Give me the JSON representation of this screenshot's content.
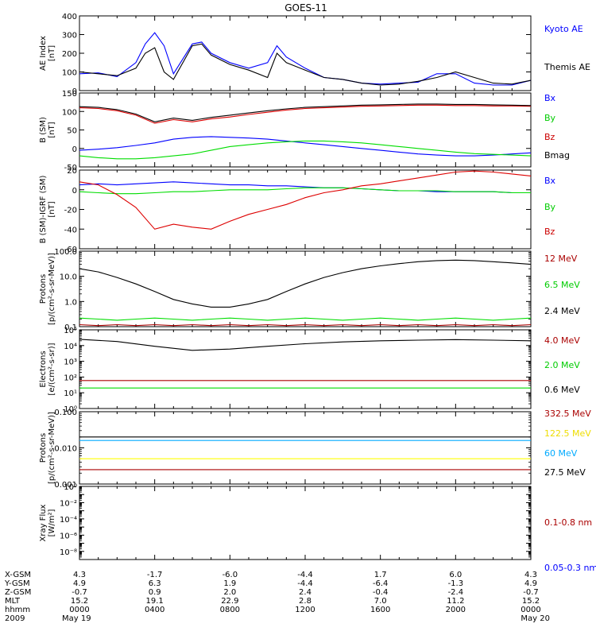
{
  "title": "GOES-11",
  "chart_data": [
    {
      "panel": "ae",
      "type": "line",
      "ylabel": [
        "AE Index",
        "[nT]"
      ],
      "ylim": [
        0,
        400
      ],
      "yscale": "linear",
      "yticks": [
        0,
        100,
        200,
        300,
        400
      ],
      "ytick_labels": [
        "0",
        "100",
        "200",
        "300",
        "400"
      ],
      "x_hours": [
        0,
        1,
        2,
        3,
        3.5,
        4,
        4.5,
        5,
        6,
        6.5,
        7,
        8,
        9,
        10,
        10.5,
        11,
        12,
        13,
        14,
        15,
        16,
        17,
        18,
        19,
        20,
        21,
        22,
        23,
        24
      ],
      "series": [
        {
          "name": "Kyoto AE",
          "color": "#0000ff",
          "values": [
            90,
            95,
            75,
            150,
            250,
            310,
            240,
            90,
            250,
            260,
            200,
            150,
            120,
            150,
            240,
            180,
            120,
            70,
            60,
            40,
            35,
            40,
            45,
            90,
            90,
            40,
            30,
            30,
            55
          ]
        },
        {
          "name": "Themis AE",
          "color": "#000000",
          "values": [
            100,
            90,
            80,
            120,
            200,
            230,
            100,
            60,
            240,
            250,
            190,
            140,
            110,
            70,
            200,
            150,
            110,
            70,
            60,
            40,
            30,
            35,
            50,
            70,
            100,
            70,
            40,
            35,
            55
          ]
        }
      ]
    },
    {
      "panel": "bfield",
      "type": "line",
      "ylabel": [
        "B (SM)",
        "[nT]"
      ],
      "ylim": [
        -50,
        150
      ],
      "yscale": "linear",
      "yticks": [
        -50,
        0,
        50,
        100,
        150
      ],
      "ytick_labels": [
        "-50",
        "0",
        "50",
        "100",
        "150"
      ],
      "x_hours": [
        0,
        1,
        2,
        3,
        4,
        5,
        6,
        7,
        8,
        9,
        10,
        11,
        12,
        13,
        14,
        15,
        16,
        17,
        18,
        19,
        20,
        21,
        22,
        23,
        24
      ],
      "series": [
        {
          "name": "Bx",
          "color": "#0000ff",
          "values": [
            -5,
            -2,
            2,
            8,
            15,
            25,
            30,
            32,
            30,
            28,
            25,
            20,
            15,
            10,
            5,
            0,
            -5,
            -10,
            -15,
            -18,
            -20,
            -20,
            -18,
            -15,
            -12
          ]
        },
        {
          "name": "By",
          "color": "#00dd00",
          "values": [
            -20,
            -25,
            -28,
            -28,
            -25,
            -20,
            -15,
            -5,
            5,
            10,
            15,
            18,
            20,
            20,
            18,
            15,
            10,
            5,
            0,
            -5,
            -10,
            -14,
            -16,
            -18,
            -20
          ]
        },
        {
          "name": "Bz",
          "color": "#dd0000",
          "values": [
            110,
            108,
            102,
            90,
            68,
            78,
            72,
            80,
            85,
            92,
            98,
            104,
            108,
            110,
            112,
            114,
            115,
            116,
            117,
            117,
            116,
            116,
            115,
            115,
            114
          ]
        },
        {
          "name": "Bmag",
          "color": "#000000",
          "values": [
            113,
            111,
            105,
            93,
            72,
            82,
            76,
            84,
            90,
            96,
            102,
            107,
            111,
            113,
            115,
            117,
            118,
            119,
            120,
            120,
            119,
            119,
            118,
            117,
            116
          ]
        }
      ]
    },
    {
      "panel": "bdiff",
      "type": "line",
      "ylabel": [
        "B (SM)-IGRF (SM)",
        "[nT]"
      ],
      "ylim": [
        -60,
        20
      ],
      "yscale": "linear",
      "yticks": [
        -60,
        -40,
        -20,
        0,
        20
      ],
      "ytick_labels": [
        "-60",
        "-40",
        "-20",
        "0",
        "20"
      ],
      "x_hours": [
        0,
        1,
        2,
        3,
        4,
        5,
        6,
        7,
        8,
        9,
        10,
        11,
        12,
        13,
        14,
        15,
        16,
        17,
        18,
        19,
        20,
        21,
        22,
        23,
        24
      ],
      "series": [
        {
          "name": "Bx",
          "color": "#0000ff",
          "values": [
            5,
            6,
            5,
            6,
            7,
            8,
            7,
            6,
            5,
            5,
            4,
            4,
            3,
            2,
            2,
            1,
            0,
            -1,
            -1,
            -2,
            -2,
            -2,
            -2,
            -3,
            -3
          ]
        },
        {
          "name": "By",
          "color": "#00dd00",
          "values": [
            -2,
            -3,
            -4,
            -4,
            -3,
            -2,
            -2,
            -1,
            0,
            0,
            0,
            1,
            2,
            2,
            2,
            1,
            0,
            -1,
            -1,
            -1,
            -2,
            -2,
            -2,
            -3,
            -3
          ]
        },
        {
          "name": "Bz",
          "color": "#dd0000",
          "values": [
            8,
            5,
            -5,
            -18,
            -40,
            -35,
            -38,
            -40,
            -32,
            -25,
            -20,
            -15,
            -8,
            -3,
            0,
            4,
            6,
            9,
            12,
            15,
            18,
            19,
            18,
            16,
            14
          ]
        }
      ]
    },
    {
      "panel": "protons_low",
      "type": "line",
      "ylabel": [
        "Protons",
        "[p/(cm²-s-sr-MeV)]"
      ],
      "ylim": [
        0.1,
        100
      ],
      "yscale": "log",
      "yticks": [
        0.1,
        1,
        10,
        100
      ],
      "ytick_labels": [
        "0.1",
        "1.0",
        "10.0",
        "100.0"
      ],
      "x_hours": [
        0,
        1,
        2,
        3,
        4,
        5,
        6,
        7,
        8,
        9,
        10,
        11,
        12,
        13,
        14,
        15,
        16,
        17,
        18,
        19,
        20,
        21,
        22,
        23,
        24
      ],
      "series": [
        {
          "name": "12 MeV",
          "color": "#aa0000",
          "values": [
            0.12,
            0.11,
            0.12,
            0.11,
            0.12,
            0.11,
            0.12,
            0.11,
            0.12,
            0.11,
            0.12,
            0.11,
            0.12,
            0.11,
            0.12,
            0.11,
            0.12,
            0.11,
            0.12,
            0.11,
            0.12,
            0.11,
            0.12,
            0.11,
            0.12
          ]
        },
        {
          "name": "6.5 MeV",
          "color": "#00dd00",
          "values": [
            0.22,
            0.2,
            0.18,
            0.2,
            0.22,
            0.2,
            0.18,
            0.2,
            0.22,
            0.2,
            0.18,
            0.2,
            0.22,
            0.2,
            0.18,
            0.2,
            0.22,
            0.2,
            0.18,
            0.2,
            0.22,
            0.2,
            0.18,
            0.2,
            0.22
          ]
        },
        {
          "name": "2.4 MeV",
          "color": "#000000",
          "values": [
            20,
            15,
            9,
            5,
            2.5,
            1.2,
            0.8,
            0.6,
            0.6,
            0.8,
            1.2,
            2.5,
            5,
            9,
            14,
            20,
            26,
            32,
            38,
            42,
            44,
            42,
            38,
            34,
            30
          ]
        }
      ]
    },
    {
      "panel": "electrons",
      "type": "line",
      "ylabel": [
        "Electrons",
        "[e/(cm²-s-sr)]"
      ],
      "ylim": [
        1,
        100000
      ],
      "yscale": "log",
      "yticks": [
        1,
        10,
        100,
        1000,
        10000,
        100000
      ],
      "ytick_labels": [
        "10⁰",
        "10¹",
        "10²",
        "10³",
        "10⁴",
        "10⁵"
      ],
      "x_hours": [
        0,
        2,
        4,
        6,
        8,
        10,
        12,
        14,
        16,
        18,
        20,
        22,
        24
      ],
      "series": [
        {
          "name": "4.0 MeV",
          "color": "#aa0000",
          "values": [
            60,
            60,
            60,
            60,
            60,
            60,
            60,
            60,
            60,
            60,
            60,
            60,
            60
          ]
        },
        {
          "name": "2.0 MeV",
          "color": "#00dd00",
          "values": [
            20,
            20,
            20,
            20,
            20,
            20,
            20,
            20,
            20,
            20,
            20,
            20,
            20
          ]
        },
        {
          "name": "0.6 MeV",
          "color": "#000000",
          "values": [
            25000,
            18000,
            9000,
            5000,
            6000,
            9000,
            13000,
            17000,
            20000,
            22000,
            24000,
            22000,
            20000
          ]
        }
      ]
    },
    {
      "panel": "protons_high",
      "type": "line",
      "ylabel": [
        "Protons",
        "[p/(cm²-s-sr-MeV)]"
      ],
      "ylim": [
        0.001,
        0.1
      ],
      "yscale": "log",
      "yticks": [
        0.001,
        0.01,
        0.1
      ],
      "ytick_labels": [
        "0.001",
        "0.010",
        "0.100"
      ],
      "x_hours": [
        0,
        6,
        12,
        18,
        24
      ],
      "series": [
        {
          "name": "332.5 MeV",
          "color": "#aa0000",
          "values": [
            0.0025,
            0.0025,
            0.0025,
            0.0025,
            0.0025
          ]
        },
        {
          "name": "122.5 MeV",
          "color": "#ffff00",
          "values": [
            0.005,
            0.005,
            0.005,
            0.005,
            0.005
          ]
        },
        {
          "name": "60 MeV",
          "color": "#00aaff",
          "values": [
            0.016,
            0.016,
            0.016,
            0.016,
            0.016
          ]
        },
        {
          "name": "27.5 MeV",
          "color": "#000000",
          "values": [
            0.02,
            0.02,
            0.02,
            0.02,
            0.02
          ]
        }
      ]
    },
    {
      "panel": "xray",
      "type": "line",
      "ylabel": [
        "Xray Flux",
        "[W/m²]"
      ],
      "ylim": [
        1e-09,
        1
      ],
      "yscale": "log",
      "yticks": [
        1e-09,
        1e-08,
        1e-07,
        1e-06,
        1e-05,
        0.0001,
        0.001,
        0.01,
        0.1,
        1
      ],
      "ytick_labels": [
        "",
        "10⁻⁸",
        "",
        "10⁻⁶",
        "",
        "10⁻⁴",
        "",
        "10⁻²",
        "",
        "10⁰"
      ],
      "x_hours": [],
      "series": [
        {
          "name": "0.1-0.8 nm",
          "color": "#aa0000",
          "values": []
        },
        {
          "name": "0.05-0.3 nm",
          "color": "#0000ff",
          "values": []
        }
      ]
    }
  ],
  "legend_labels": [
    {
      "text": "Kyoto AE",
      "color": "#0000ff"
    },
    {
      "text": "Themis AE",
      "color": "#000000"
    },
    {
      "text": "Bx",
      "color": "#0000ff"
    },
    {
      "text": "By",
      "color": "#00cc00"
    },
    {
      "text": "Bz",
      "color": "#cc0000"
    },
    {
      "text": "Bmag",
      "color": "#000000"
    },
    {
      "text": "Bx",
      "color": "#0000ff"
    },
    {
      "text": "By",
      "color": "#00cc00"
    },
    {
      "text": "Bz",
      "color": "#cc0000"
    },
    {
      "text": "12 MeV",
      "color": "#aa0000"
    },
    {
      "text": "6.5 MeV",
      "color": "#00cc00"
    },
    {
      "text": "2.4 MeV",
      "color": "#000000"
    },
    {
      "text": "4.0 MeV",
      "color": "#aa0000"
    },
    {
      "text": "2.0 MeV",
      "color": "#00cc00"
    },
    {
      "text": "0.6 MeV",
      "color": "#000000"
    },
    {
      "text": "332.5 MeV",
      "color": "#aa0000"
    },
    {
      "text": "122.5 MeV",
      "color": "#eedd00"
    },
    {
      "text": "60 MeV",
      "color": "#00aaff"
    },
    {
      "text": "27.5 MeV",
      "color": "#000000"
    },
    {
      "text": "0.1-0.8 nm",
      "color": "#aa0000"
    },
    {
      "text": "0.05-0.3 nm",
      "color": "#0000ff"
    }
  ],
  "ephemeris": {
    "row_labels": [
      "X-GSM",
      "Y-GSM",
      "Z-GSM",
      "MLT",
      "hhmm",
      "2009"
    ],
    "columns": [
      [
        "4.3",
        "4.9",
        "-0.7",
        "15.2",
        "0000",
        "May 19"
      ],
      [
        "-1.7",
        "6.3",
        "0.9",
        "19.1",
        "0400",
        ""
      ],
      [
        "-6.0",
        "1.9",
        "2.0",
        "22.9",
        "0800",
        ""
      ],
      [
        "-4.4",
        "-4.4",
        "2.4",
        "2.8",
        "1200",
        ""
      ],
      [
        "1.7",
        "-6.4",
        "-0.4",
        "7.0",
        "1600",
        ""
      ],
      [
        "6.0",
        "-1.3",
        "-2.4",
        "11.2",
        "2000",
        ""
      ],
      [
        "4.3",
        "4.9",
        "-0.7",
        "15.2",
        "0000",
        "May 20"
      ]
    ]
  }
}
